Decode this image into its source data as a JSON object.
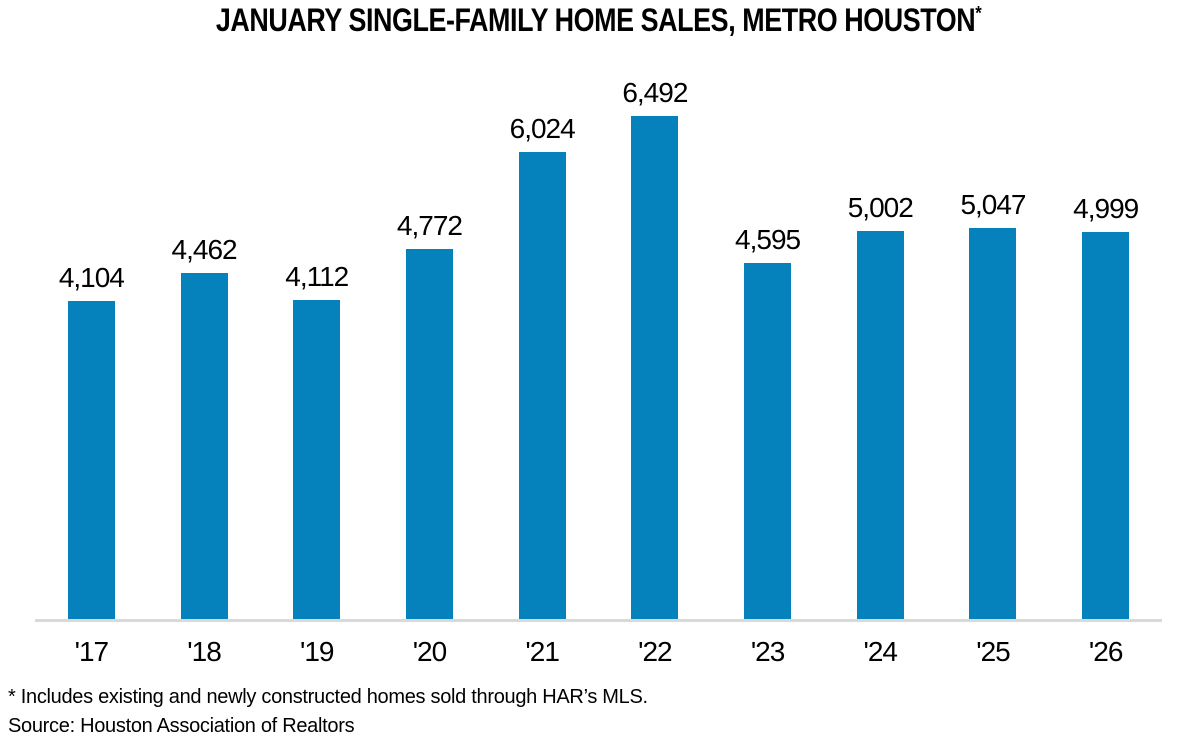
{
  "chart_data": {
    "type": "bar",
    "title": "JANUARY SINGLE-FAMILY HOME SALES, METRO HOUSTON",
    "title_superscript": "*",
    "categories": [
      "'17",
      "'18",
      "'19",
      "'20",
      "'21",
      "'22",
      "'23",
      "'24",
      "'25",
      "'26"
    ],
    "values": [
      4104,
      4462,
      4112,
      4772,
      6024,
      6492,
      4595,
      5002,
      5047,
      4999
    ],
    "data_labels": [
      "4,104",
      "4,462",
      "4,112",
      "4,772",
      "6,024",
      "6,492",
      "4,595",
      "5,002",
      "5,047",
      "4,999"
    ],
    "xlabel": "",
    "ylabel": "",
    "ylim": [
      0,
      6800
    ],
    "grid": false,
    "legend": false,
    "data_label_position": "above-bar",
    "bar_color": "#0581BC",
    "axis_line_color": "#D9D9D9",
    "text_color": "#000000",
    "background_color": "#FFFFFF"
  },
  "footnote": {
    "line1": "* Includes existing and newly constructed homes sold through HAR’s MLS.",
    "line2": "Source: Houston Association of Realtors"
  }
}
